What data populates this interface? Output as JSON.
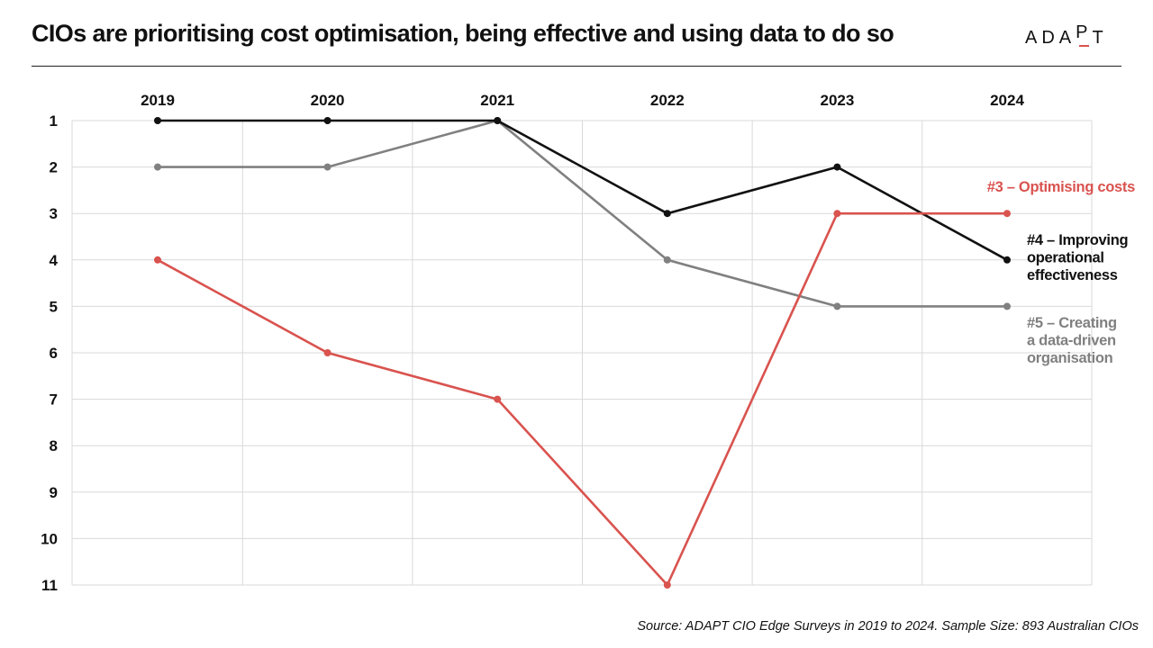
{
  "title": "CIOs are prioritising cost optimisation, being effective and using data to do so",
  "logo": {
    "text_before": "ADA",
    "text_accent": "P",
    "text_after": "T",
    "accent_color": "#d9534f"
  },
  "source": "Source: ADAPT CIO Edge Surveys in 2019 to 2024. Sample Size: 893 Australian CIOs",
  "colors": {
    "red": "#d9534f",
    "black": "#111111",
    "gray": "#808080",
    "grid": "#d9d9d9"
  },
  "chart_data": {
    "type": "line",
    "x": [
      "2019",
      "2020",
      "2021",
      "2022",
      "2023",
      "2024"
    ],
    "ylim": [
      1,
      11
    ],
    "y_ticks": [
      "1",
      "2",
      "3",
      "4",
      "5",
      "6",
      "7",
      "8",
      "9",
      "10",
      "11"
    ],
    "y_inverted": true,
    "grid": true,
    "series": [
      {
        "key": "optimising_costs",
        "values": [
          4,
          6,
          7,
          11,
          3,
          3
        ],
        "color": "#d9534f",
        "label_lines": [
          "#3 – Optimising costs"
        ]
      },
      {
        "key": "operational_effectiveness",
        "values": [
          1,
          1,
          1,
          3,
          2,
          4
        ],
        "color": "#111111",
        "label_lines": [
          "#4 – Improving",
          "operational",
          "effectiveness"
        ]
      },
      {
        "key": "data_driven",
        "values": [
          2,
          2,
          1,
          4,
          5,
          5
        ],
        "color": "#808080",
        "label_lines": [
          "#5 – Creating",
          "a data-driven",
          "organisation"
        ]
      }
    ]
  }
}
